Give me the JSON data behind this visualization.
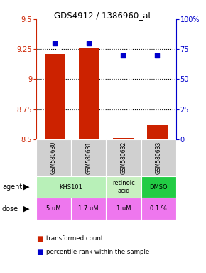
{
  "title": "GDS4912 / 1386960_at",
  "samples": [
    "GSM580630",
    "GSM580631",
    "GSM580632",
    "GSM580633"
  ],
  "bar_values": [
    9.21,
    9.255,
    8.51,
    8.62
  ],
  "percentile_values": [
    80,
    80,
    70,
    70
  ],
  "ylim_left": [
    8.5,
    9.5
  ],
  "ylim_right": [
    0,
    100
  ],
  "yticks_left": [
    8.5,
    8.75,
    9.0,
    9.25,
    9.5
  ],
  "ytick_labels_left": [
    "8.5",
    "8.75",
    "9",
    "9.25",
    "9.5"
  ],
  "yticks_right": [
    0,
    25,
    50,
    75,
    100
  ],
  "ytick_labels_right": [
    "0",
    "25",
    "50",
    "75",
    "100%"
  ],
  "bar_color": "#cc2200",
  "point_color": "#0000cc",
  "bar_width": 0.6,
  "agent_colors": [
    "#b8f0b8",
    "#c8f0c0",
    "#22cc44"
  ],
  "dose_color": "#ee77ee",
  "dose_text_color": "#000000",
  "grid_color": "#000000",
  "bg_color": "#ffffff",
  "sample_bg": "#d0d0d0",
  "legend_bar_color": "#cc2200",
  "legend_point_color": "#0000cc",
  "dose_labels": [
    "5 uM",
    "1.7 uM",
    "1 uM",
    "0.1 %"
  ],
  "agent_spans": [
    [
      0,
      2,
      "KHS101"
    ],
    [
      2,
      1,
      "retinoic\nacid"
    ],
    [
      3,
      1,
      "DMSO"
    ]
  ]
}
